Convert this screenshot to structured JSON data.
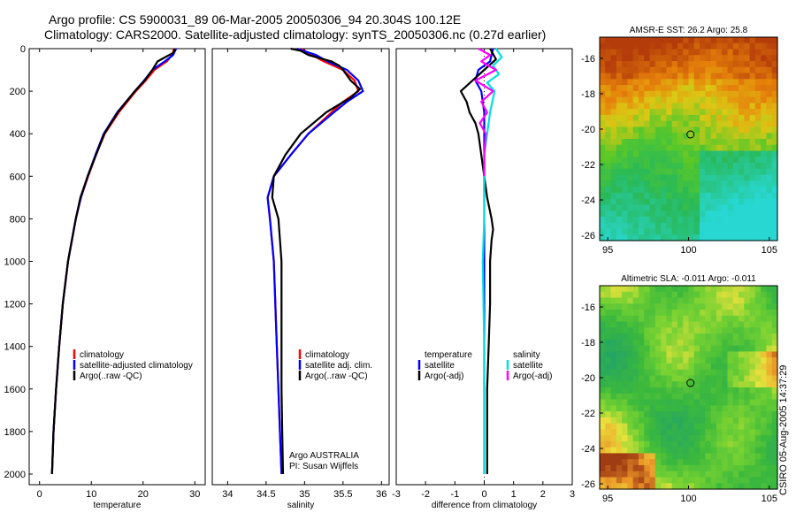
{
  "title": {
    "line1": "Argo profile: CS 5900031_89 06-Mar-2005 20050306_94 20.304S 100.12E",
    "line2": "Climatology: CARS2000. Satellite-adjusted climatology: synTS_20050306.nc (0.27d earlier)"
  },
  "stamp": "CSIRO 05-Aug-2005 14:37:29",
  "colors": {
    "red": "#ff0000",
    "blue": "#0000ff",
    "black": "#000000",
    "cyan": "#00e0e0",
    "magenta": "#ff00ff",
    "dots": "#000000"
  },
  "chart_data": [
    {
      "type": "line",
      "id": "temperature",
      "xlabel": "temperature",
      "xlim": [
        -2,
        32
      ],
      "ylim": [
        0,
        2050
      ],
      "y_inverted": true,
      "xticks": [
        0,
        10,
        20,
        30
      ],
      "yticks": [
        0,
        200,
        400,
        600,
        800,
        1000,
        1200,
        1400,
        1600,
        1800,
        2000
      ],
      "legend": [
        "climatology",
        "satellite-adjusted climatology",
        "Argo(..raw -QC)"
      ],
      "series": [
        {
          "name": "climatology",
          "color": "red",
          "y": [
            0,
            30,
            60,
            100,
            150,
            200,
            300,
            400,
            500,
            600,
            700,
            800,
            1000,
            1200,
            1400,
            1600,
            1800,
            2000
          ],
          "x": [
            26.0,
            25.6,
            24.6,
            22.2,
            20.5,
            18.6,
            15.3,
            12.6,
            10.9,
            9.4,
            8.0,
            7.0,
            5.5,
            4.5,
            3.8,
            3.2,
            2.7,
            2.4
          ]
        },
        {
          "name": "satellite-adjusted climatology",
          "color": "blue",
          "y": [
            0,
            30,
            60,
            100,
            150,
            200,
            300,
            400,
            500,
            600,
            700,
            800,
            1000,
            1200,
            1400,
            1600,
            1800,
            2000
          ],
          "x": [
            26.4,
            25.8,
            24.2,
            21.8,
            20.2,
            18.4,
            15.0,
            12.4,
            10.8,
            9.3,
            8.0,
            7.0,
            5.5,
            4.5,
            3.8,
            3.2,
            2.7,
            2.4
          ]
        },
        {
          "name": "Argo raw",
          "color": "black",
          "y": [
            0,
            10,
            20,
            40,
            60,
            80,
            100,
            150,
            200,
            300,
            400,
            500,
            600,
            700,
            800,
            1000,
            1200,
            1400,
            1600,
            1800,
            2000
          ],
          "x": [
            26.0,
            26.1,
            25.8,
            24.3,
            22.8,
            22.3,
            21.8,
            20.3,
            18.4,
            15.1,
            12.5,
            10.9,
            9.3,
            7.9,
            7.0,
            5.5,
            4.5,
            3.8,
            3.2,
            2.7,
            2.4
          ]
        }
      ]
    },
    {
      "type": "line",
      "id": "salinity",
      "xlabel": "salinity",
      "xlim": [
        33.8,
        36.1
      ],
      "ylim": [
        0,
        2050
      ],
      "y_inverted": true,
      "xticks": [
        34,
        34.5,
        35,
        35.5,
        36
      ],
      "legend": [
        "climatology",
        "satellite adj. clim.",
        "Argo(..raw -QC)"
      ],
      "annotation": [
        "Argo AUSTRALIA",
        "PI: Susan Wijffels"
      ],
      "series": [
        {
          "name": "climatology",
          "color": "red",
          "y": [
            0,
            30,
            60,
            100,
            150,
            200,
            250,
            300,
            400,
            500,
            600,
            700,
            800,
            1000,
            1200,
            1400,
            1600,
            1800,
            2000
          ],
          "x": [
            34.95,
            35.1,
            35.25,
            35.5,
            35.65,
            35.7,
            35.5,
            35.35,
            35.05,
            34.82,
            34.6,
            34.52,
            34.55,
            34.6,
            34.62,
            34.64,
            34.66,
            34.68,
            34.7
          ]
        },
        {
          "name": "satellite adj. clim.",
          "color": "blue",
          "y": [
            0,
            30,
            60,
            100,
            150,
            200,
            250,
            300,
            400,
            500,
            600,
            700,
            800,
            1000,
            1200,
            1400,
            1600,
            1800,
            2000
          ],
          "x": [
            34.9,
            35.15,
            35.3,
            35.55,
            35.7,
            35.76,
            35.55,
            35.38,
            35.05,
            34.82,
            34.6,
            34.52,
            34.55,
            34.6,
            34.62,
            34.64,
            34.66,
            34.68,
            34.7
          ]
        },
        {
          "name": "Argo raw",
          "color": "black",
          "y": [
            0,
            10,
            30,
            60,
            80,
            100,
            150,
            190,
            230,
            300,
            400,
            500,
            600,
            700,
            800,
            1000,
            1200,
            1400,
            1600,
            1800,
            2000
          ],
          "x": [
            34.82,
            34.95,
            35.05,
            35.35,
            35.45,
            35.5,
            35.6,
            35.72,
            35.6,
            35.28,
            34.95,
            34.75,
            34.6,
            34.58,
            34.66,
            34.7,
            34.7,
            34.7,
            34.7,
            34.71,
            34.72
          ]
        }
      ]
    },
    {
      "type": "line",
      "id": "difference",
      "xlabel": "difference from climatology",
      "xlim": [
        -3,
        3
      ],
      "ylim": [
        0,
        2050
      ],
      "y_inverted": true,
      "xticks": [
        -3,
        -2,
        -1,
        0,
        1,
        2,
        3
      ],
      "legend_left": {
        "heading": "temperature",
        "items": [
          "satellite",
          "Argo(-adj)"
        ]
      },
      "legend_right": {
        "heading": "salinity",
        "items": [
          "satellite",
          "Argo(-adj)"
        ]
      },
      "series": [
        {
          "name": "temperature satellite",
          "color": "blue",
          "y": [
            0,
            60,
            100,
            150,
            200,
            300,
            400,
            600,
            800,
            1000,
            1400,
            1800,
            2000
          ],
          "x": [
            0.3,
            0.2,
            -0.2,
            -0.3,
            -0.1,
            0,
            0,
            0,
            0,
            0,
            0,
            0,
            0
          ]
        },
        {
          "name": "temperature Argo(-adj)",
          "color": "black",
          "y": [
            0,
            50,
            100,
            150,
            200,
            250,
            300,
            350,
            400,
            500,
            600,
            700,
            800,
            850,
            900,
            1000,
            1200,
            1400,
            1600,
            1800,
            2000
          ],
          "x": [
            0.2,
            0.4,
            0.0,
            -0.4,
            -0.8,
            -0.6,
            -0.5,
            -0.3,
            -0.2,
            -0.1,
            0.0,
            0.1,
            0.25,
            0.3,
            0.25,
            0.2,
            0.2,
            0.15,
            0.1,
            0.1,
            0.1
          ]
        },
        {
          "name": "salinity satellite",
          "color": "cyan",
          "y": [
            0,
            40,
            80,
            120,
            160,
            200,
            300,
            400,
            500,
            600,
            800,
            1000,
            1400,
            1800,
            2000
          ],
          "x": [
            0.4,
            0.6,
            0.3,
            0.5,
            0.1,
            0.35,
            0.2,
            0.1,
            0.0,
            0.0,
            0.0,
            -0.05,
            0.0,
            0.0,
            0.0
          ]
        },
        {
          "name": "salinity Argo(-adj)",
          "color": "magenta",
          "y": [
            0,
            30,
            60,
            100,
            150,
            200,
            250,
            300,
            350,
            400,
            500,
            600
          ],
          "x": [
            -0.2,
            0.2,
            -0.1,
            0.4,
            -0.3,
            0.3,
            -0.1,
            0.1,
            -0.15,
            0.05,
            0.0,
            0.0
          ]
        }
      ]
    },
    {
      "type": "heatmap",
      "id": "sst_map",
      "title": "AMSR-E SST: 26.2 Argo: 25.8",
      "xlim": [
        94.5,
        105.5
      ],
      "ylim": [
        -26.3,
        -14.8
      ],
      "xticks": [
        95,
        100,
        105
      ],
      "yticks": [
        -16,
        -18,
        -20,
        -22,
        -24,
        -26
      ],
      "marker": {
        "lon": 100.12,
        "lat": -20.3
      }
    },
    {
      "type": "heatmap",
      "id": "sla_map",
      "title": "Altimetric SLA: -0.011 Argo: -0.011",
      "xlim": [
        94.5,
        105.5
      ],
      "ylim": [
        -26.3,
        -14.8
      ],
      "xticks": [
        95,
        100,
        105
      ],
      "yticks": [
        -16,
        -18,
        -20,
        -22,
        -24,
        -26
      ],
      "marker": {
        "lon": 100.12,
        "lat": -20.3
      }
    }
  ]
}
